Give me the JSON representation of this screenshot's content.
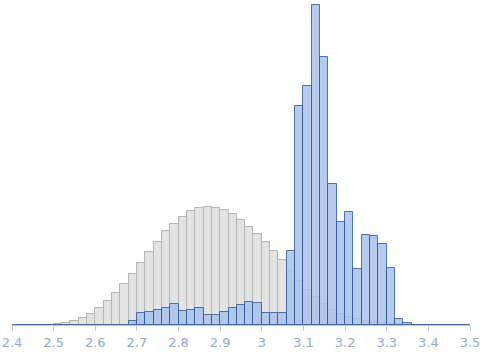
{
  "chart_data": {
    "type": "histogram",
    "bins": [
      2.4,
      2.42,
      2.44,
      2.46,
      2.48,
      2.5,
      2.52,
      2.54,
      2.56,
      2.58,
      2.6,
      2.62,
      2.64,
      2.66,
      2.68,
      2.7,
      2.72,
      2.74,
      2.76,
      2.78,
      2.8,
      2.82,
      2.84,
      2.86,
      2.88,
      2.9,
      2.92,
      2.94,
      2.96,
      2.98,
      3.0,
      3.02,
      3.04,
      3.06,
      3.08,
      3.1,
      3.12,
      3.14,
      3.16,
      3.18,
      3.2,
      3.22,
      3.24,
      3.26,
      3.28,
      3.3,
      3.32,
      3.34,
      3.36,
      3.38,
      3.4,
      3.42,
      3.44,
      3.46,
      3.48,
      3.5
    ],
    "series": [
      {
        "color": "#e3e3e3",
        "values": [
          0,
          0,
          0,
          0,
          0,
          1,
          2,
          4,
          7,
          11,
          17,
          24,
          32,
          42,
          52,
          63,
          74,
          84,
          95,
          103,
          110,
          116,
          119,
          120,
          119,
          117,
          113,
          107,
          100,
          92,
          84,
          75,
          66,
          55,
          45,
          36,
          28,
          21,
          15,
          11,
          8,
          6,
          4,
          3,
          2,
          1,
          1,
          0,
          0,
          0,
          0,
          0,
          0,
          0,
          0
        ]
      },
      {
        "color": "#a9c1ea",
        "values": [
          0,
          0,
          0,
          0,
          0,
          0,
          0,
          0,
          0,
          0,
          0,
          0,
          0,
          0,
          4,
          12,
          13,
          15,
          17,
          21,
          14,
          15,
          17,
          10,
          10,
          13,
          17,
          20,
          23,
          22,
          12,
          12,
          12,
          75,
          222,
          243,
          325,
          272,
          143,
          105,
          115,
          57,
          91,
          90,
          82,
          58,
          6,
          2,
          0,
          0,
          0,
          0,
          0,
          0,
          0
        ]
      }
    ],
    "xlim": [
      2.4,
      3.5
    ],
    "xticks": [
      2.4,
      2.5,
      2.6,
      2.7,
      2.8,
      2.9,
      3,
      3.1,
      3.2,
      3.3,
      3.4,
      3.5
    ],
    "ylim": [
      0,
      330
    ],
    "grid": false,
    "tick_labels": "x"
  }
}
